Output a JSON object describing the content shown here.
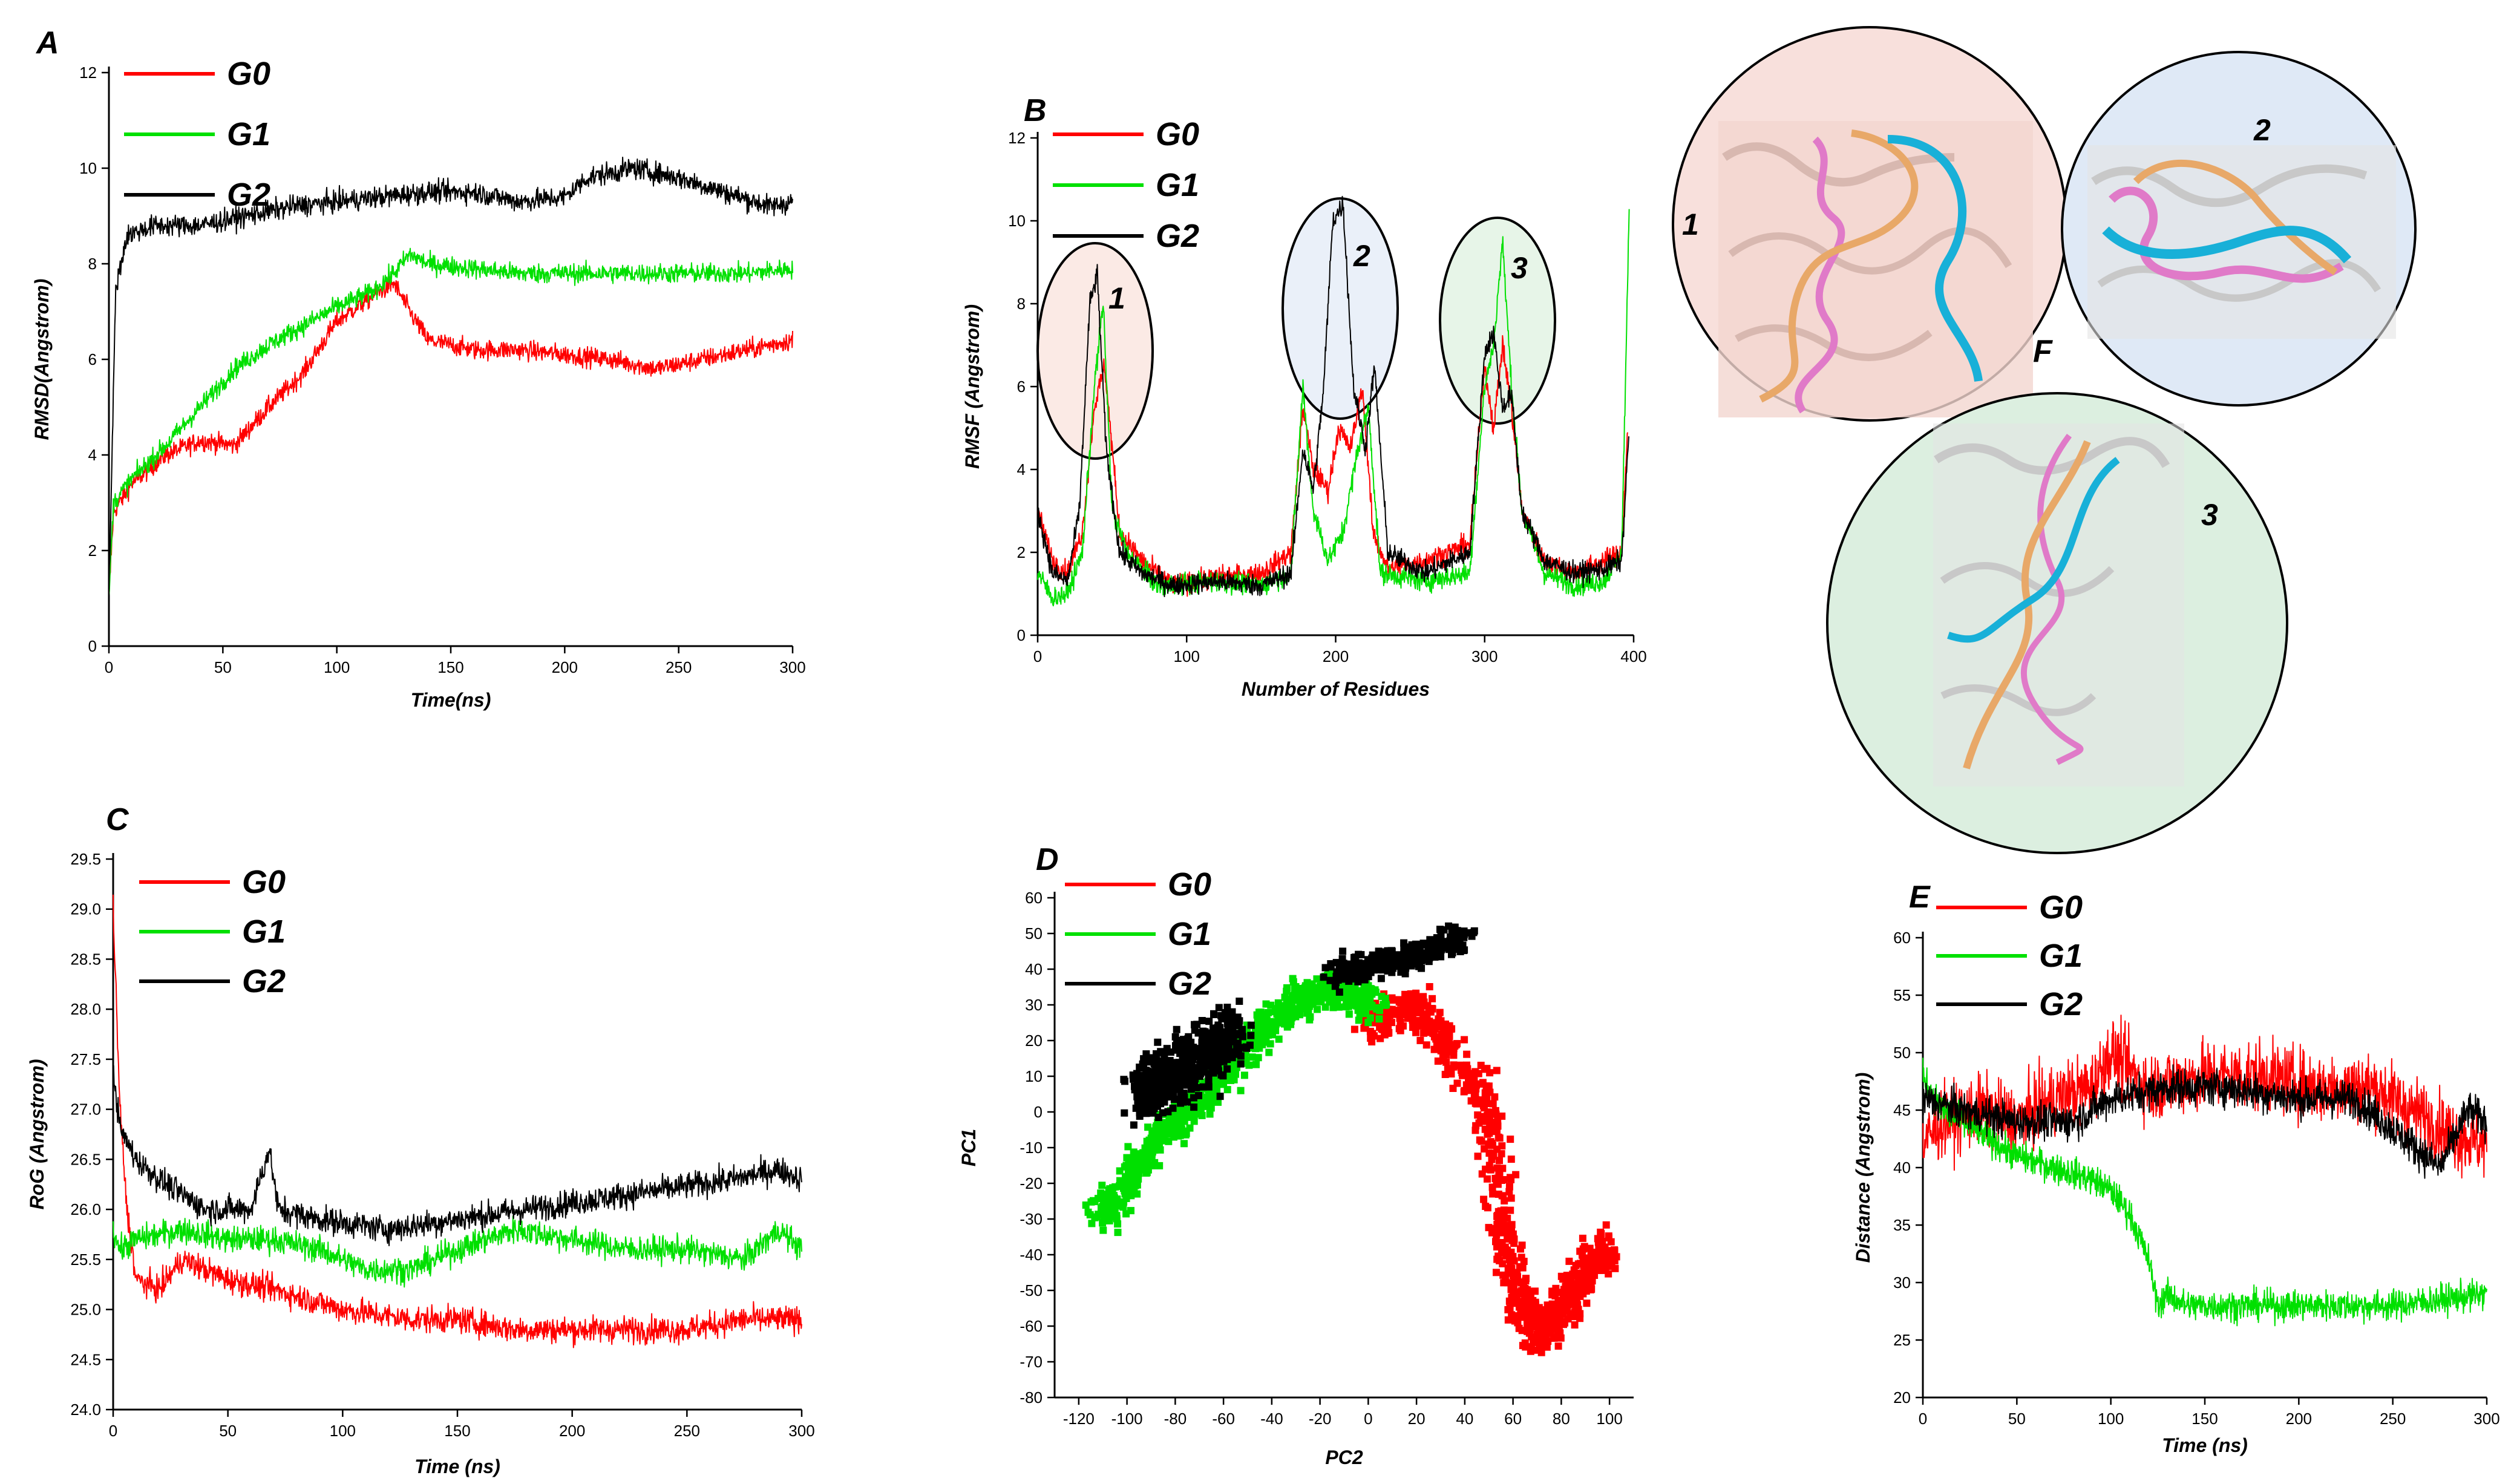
{
  "colors": {
    "G0": "#ff0000",
    "G1": "#00e000",
    "G2": "#000000"
  },
  "panel_F": {
    "label": "F",
    "insets": [
      {
        "number": "1",
        "bg": "#f8e0dc"
      },
      {
        "number": "2",
        "bg": "#dfe9f6"
      },
      {
        "number": "3",
        "bg": "#dcefe0"
      }
    ],
    "ribbon_colors": [
      "#e07ac8",
      "#e8a868",
      "#18b0d8"
    ]
  },
  "chart_data": [
    {
      "id": "A",
      "panel_label": "A",
      "type": "line",
      "xlabel": "Time(ns)",
      "ylabel": "RMSD(Angstrom)",
      "xlim": [
        0,
        300
      ],
      "ylim": [
        0,
        12
      ],
      "xticks": [
        0,
        50,
        100,
        150,
        200,
        250,
        300
      ],
      "yticks": [
        0,
        2,
        4,
        6,
        8,
        10,
        12
      ],
      "xtick_labels": [
        "0",
        "50",
        "100",
        "150",
        "200",
        "250",
        "300"
      ],
      "ytick_labels": [
        "0",
        "2",
        "4",
        "6",
        "8",
        "10",
        "12"
      ],
      "legend": [
        "G0",
        "G1",
        "G2"
      ],
      "series": [
        {
          "name": "G0",
          "x": [
            0,
            2,
            10,
            25,
            40,
            55,
            70,
            85,
            100,
            115,
            125,
            132,
            140,
            160,
            180,
            200,
            220,
            240,
            260,
            280,
            300
          ],
          "y": [
            1.0,
            2.8,
            3.4,
            4.0,
            4.3,
            4.2,
            5.0,
            5.7,
            6.8,
            7.3,
            7.6,
            7.0,
            6.4,
            6.2,
            6.2,
            6.1,
            6.0,
            5.8,
            6.0,
            6.2,
            6.4
          ],
          "noise": 0.2
        },
        {
          "name": "G1",
          "x": [
            0,
            2,
            10,
            25,
            40,
            55,
            70,
            85,
            100,
            115,
            125,
            132,
            140,
            160,
            180,
            200,
            220,
            240,
            260,
            280,
            300
          ],
          "y": [
            1.0,
            3.0,
            3.5,
            4.2,
            5.0,
            5.8,
            6.3,
            6.7,
            7.1,
            7.4,
            7.8,
            8.2,
            8.0,
            7.9,
            7.8,
            7.8,
            7.8,
            7.8,
            7.8,
            7.8,
            7.9
          ],
          "noise": 0.2
        },
        {
          "name": "G2",
          "x": [
            0,
            3,
            8,
            20,
            40,
            60,
            80,
            100,
            120,
            140,
            160,
            180,
            200,
            210,
            230,
            250,
            270,
            290,
            300
          ],
          "y": [
            1.0,
            7.5,
            8.6,
            8.8,
            8.8,
            9.0,
            9.2,
            9.3,
            9.4,
            9.5,
            9.5,
            9.3,
            9.4,
            9.8,
            10.0,
            9.8,
            9.5,
            9.2,
            9.3
          ],
          "noise": 0.22
        }
      ]
    },
    {
      "id": "B",
      "panel_label": "B",
      "type": "line",
      "xlabel": "Number of Residues",
      "ylabel": "RMSF (Angstrom)",
      "xlim": [
        0,
        400
      ],
      "ylim": [
        0,
        12
      ],
      "xticks": [
        0,
        100,
        200,
        300,
        400
      ],
      "yticks": [
        0,
        2,
        4,
        6,
        8,
        10,
        12
      ],
      "xtick_labels": [
        "0",
        "100",
        "200",
        "300",
        "400"
      ],
      "ytick_labels": [
        "0",
        "2",
        "4",
        "6",
        "8",
        "10",
        "12"
      ],
      "legend": [
        "G0",
        "G1",
        "G2"
      ],
      "circle_labels": [
        "1",
        "2",
        "3"
      ],
      "series": [
        {
          "name": "G0",
          "x": [
            0,
            10,
            20,
            30,
            38,
            45,
            55,
            70,
            90,
            120,
            150,
            170,
            178,
            185,
            195,
            202,
            210,
            218,
            225,
            235,
            260,
            290,
            300,
            306,
            312,
            318,
            325,
            340,
            360,
            380,
            392,
            396
          ],
          "y": [
            3.0,
            1.8,
            1.5,
            2.5,
            5.5,
            6.5,
            2.5,
            1.8,
            1.2,
            1.4,
            1.5,
            2.0,
            5.5,
            4.0,
            3.5,
            5.0,
            4.5,
            6.0,
            2.5,
            1.6,
            1.8,
            2.2,
            6.5,
            5.0,
            7.0,
            5.5,
            3.0,
            1.8,
            1.5,
            1.8,
            2.0,
            5.0
          ],
          "noise": 0.25
        },
        {
          "name": "G1",
          "x": [
            0,
            10,
            20,
            30,
            38,
            44,
            50,
            60,
            80,
            120,
            150,
            170,
            178,
            185,
            195,
            205,
            215,
            222,
            230,
            260,
            290,
            300,
            306,
            312,
            318,
            325,
            340,
            360,
            380,
            392,
            397
          ],
          "y": [
            1.5,
            0.9,
            1.0,
            2.0,
            6.0,
            8.0,
            3.0,
            2.0,
            1.2,
            1.3,
            1.2,
            1.5,
            6.0,
            3.0,
            1.8,
            2.5,
            4.5,
            5.5,
            1.5,
            1.3,
            1.5,
            6.0,
            7.0,
            9.5,
            6.0,
            3.0,
            1.5,
            1.2,
            1.3,
            2.0,
            10.2
          ],
          "noise": 0.25
        },
        {
          "name": "G2",
          "x": [
            0,
            10,
            20,
            28,
            35,
            40,
            46,
            55,
            70,
            90,
            120,
            150,
            170,
            178,
            185,
            192,
            198,
            205,
            212,
            220,
            226,
            235,
            260,
            290,
            300,
            306,
            312,
            318,
            325,
            340,
            360,
            380,
            392,
            397
          ],
          "y": [
            3.0,
            1.5,
            1.3,
            3.0,
            8.0,
            8.7,
            4.5,
            2.0,
            1.5,
            1.2,
            1.3,
            1.2,
            1.5,
            4.5,
            3.5,
            6.0,
            10.0,
            10.4,
            6.0,
            4.5,
            6.5,
            2.0,
            1.5,
            2.0,
            6.8,
            7.3,
            5.5,
            5.8,
            3.0,
            1.8,
            1.5,
            1.6,
            1.8,
            5.0
          ],
          "noise": 0.25
        }
      ]
    },
    {
      "id": "C",
      "panel_label": "C",
      "type": "line",
      "xlabel": "Time (ns)",
      "ylabel": "RoG (Angstrom)",
      "xlim": [
        0,
        300
      ],
      "ylim": [
        24.0,
        29.5
      ],
      "xticks": [
        0,
        50,
        100,
        150,
        200,
        250,
        300
      ],
      "yticks": [
        24.0,
        24.5,
        25.0,
        25.5,
        26.0,
        26.5,
        27.0,
        27.5,
        28.0,
        28.5,
        29.0,
        29.5
      ],
      "xtick_labels": [
        "0",
        "50",
        "100",
        "150",
        "200",
        "250",
        "300"
      ],
      "ytick_labels": [
        "24.0",
        "24.5",
        "25.0",
        "25.5",
        "26.0",
        "26.5",
        "27.0",
        "27.5",
        "28.0",
        "28.5",
        "29.0",
        "29.5"
      ],
      "legend": [
        "G0",
        "G1",
        "G2"
      ],
      "series": [
        {
          "name": "G0",
          "x": [
            0,
            1,
            3,
            6,
            10,
            20,
            30,
            50,
            70,
            100,
            130,
            150,
            175,
            200,
            225,
            250,
            275,
            300
          ],
          "y": [
            29.0,
            28.3,
            27.0,
            26.0,
            25.3,
            25.2,
            25.5,
            25.3,
            25.2,
            25.0,
            24.9,
            24.9,
            24.8,
            24.8,
            24.8,
            24.8,
            24.9,
            24.9
          ],
          "noise": 0.13
        },
        {
          "name": "G1",
          "x": [
            0,
            3,
            10,
            30,
            50,
            70,
            90,
            110,
            130,
            150,
            175,
            200,
            225,
            250,
            275,
            290,
            300
          ],
          "y": [
            25.8,
            25.6,
            25.7,
            25.8,
            25.7,
            25.7,
            25.6,
            25.4,
            25.4,
            25.6,
            25.8,
            25.7,
            25.6,
            25.6,
            25.5,
            25.8,
            25.6
          ],
          "noise": 0.13
        },
        {
          "name": "G2",
          "x": [
            0,
            3,
            10,
            20,
            40,
            60,
            68,
            72,
            90,
            120,
            150,
            180,
            210,
            240,
            270,
            290,
            300
          ],
          "y": [
            27.4,
            26.8,
            26.5,
            26.3,
            26.0,
            26.0,
            26.6,
            26.0,
            25.9,
            25.8,
            25.9,
            26.0,
            26.1,
            26.2,
            26.3,
            26.4,
            26.3
          ],
          "noise": 0.13
        }
      ]
    },
    {
      "id": "D",
      "panel_label": "D",
      "type": "scatter",
      "xlabel": "PC2",
      "ylabel": "PC1",
      "xlim": [
        -130,
        110
      ],
      "ylim": [
        -80,
        60
      ],
      "xticks": [
        -120,
        -100,
        -80,
        -60,
        -40,
        -20,
        0,
        20,
        40,
        60,
        80,
        100
      ],
      "yticks": [
        -80,
        -70,
        -60,
        -50,
        -40,
        -30,
        -20,
        -10,
        0,
        10,
        20,
        30,
        40,
        50,
        60
      ],
      "xtick_labels": [
        "-120",
        "-100",
        "-80",
        "-60",
        "-40",
        "-20",
        "0",
        "20",
        "40",
        "60",
        "80",
        "100"
      ],
      "ytick_labels": [
        "-80",
        "-70",
        "-60",
        "-50",
        "-40",
        "-30",
        "-20",
        "-10",
        "0",
        "10",
        "20",
        "30",
        "40",
        "50",
        "60"
      ],
      "legend": [
        "G0",
        "G1",
        "G2"
      ],
      "series": [
        {
          "name": "G0",
          "path_x": [
            -2,
            10,
            20,
            30,
            40,
            48,
            52,
            55,
            60,
            65,
            70,
            75,
            80,
            85,
            90,
            95,
            100
          ],
          "path_y": [
            25,
            26,
            30,
            22,
            10,
            5,
            -10,
            -30,
            -45,
            -55,
            -60,
            -62,
            -55,
            -50,
            -45,
            -40,
            -40
          ],
          "spread": 6,
          "n": 900
        },
        {
          "name": "G1",
          "path_x": [
            -112,
            -105,
            -95,
            -85,
            -75,
            -65,
            -55,
            -45,
            -35,
            -25,
            -15,
            -5,
            5
          ],
          "path_y": [
            -28,
            -25,
            -15,
            -5,
            0,
            5,
            15,
            22,
            28,
            32,
            35,
            33,
            30
          ],
          "spread": 5,
          "n": 900
        },
        {
          "name": "G2",
          "path_x": [
            -95,
            -85,
            -75,
            -65,
            -55
          ],
          "path_y": [
            5,
            8,
            12,
            18,
            22
          ],
          "spread": 8,
          "n": 600,
          "path2_x": [
            -15,
            -5,
            5,
            15,
            25,
            35,
            40
          ],
          "path2_y": [
            38,
            40,
            42,
            43,
            45,
            48,
            50
          ],
          "spread2": 4,
          "n2": 300
        }
      ]
    },
    {
      "id": "E",
      "panel_label": "E",
      "type": "line",
      "xlabel": "Time (ns)",
      "ylabel": "Distance (Angstrom)",
      "xlim": [
        0,
        300
      ],
      "ylim": [
        20,
        60
      ],
      "xticks": [
        0,
        50,
        100,
        150,
        200,
        250,
        300
      ],
      "yticks": [
        20,
        25,
        30,
        35,
        40,
        45,
        50,
        55,
        60
      ],
      "xtick_labels": [
        "0",
        "50",
        "100",
        "150",
        "200",
        "250",
        "300"
      ],
      "ytick_labels": [
        "20",
        "25",
        "30",
        "35",
        "40",
        "45",
        "50",
        "55",
        "60"
      ],
      "legend": [
        "G0",
        "G1",
        "G2"
      ],
      "series": [
        {
          "name": "G0",
          "x": [
            0,
            10,
            30,
            50,
            70,
            90,
            100,
            120,
            150,
            180,
            210,
            240,
            260,
            280,
            300
          ],
          "y": [
            42,
            44,
            45,
            44,
            46,
            47,
            50,
            47,
            48,
            48,
            47,
            47,
            45,
            43,
            42
          ],
          "noise": 3.0
        },
        {
          "name": "G1",
          "x": [
            0,
            10,
            30,
            50,
            70,
            90,
            100,
            110,
            120,
            125,
            130,
            140,
            160,
            200,
            250,
            300
          ],
          "y": [
            48,
            45,
            43,
            41,
            40,
            39,
            38,
            36,
            32,
            28,
            29,
            28,
            28,
            28,
            28,
            29
          ],
          "noise": 1.3
        },
        {
          "name": "G2",
          "x": [
            0,
            20,
            50,
            80,
            100,
            130,
            160,
            200,
            230,
            260,
            275,
            290,
            300
          ],
          "y": [
            46,
            45,
            44,
            44,
            46,
            47,
            47,
            46,
            46,
            42,
            40,
            45,
            44
          ],
          "noise": 1.6
        }
      ]
    }
  ]
}
